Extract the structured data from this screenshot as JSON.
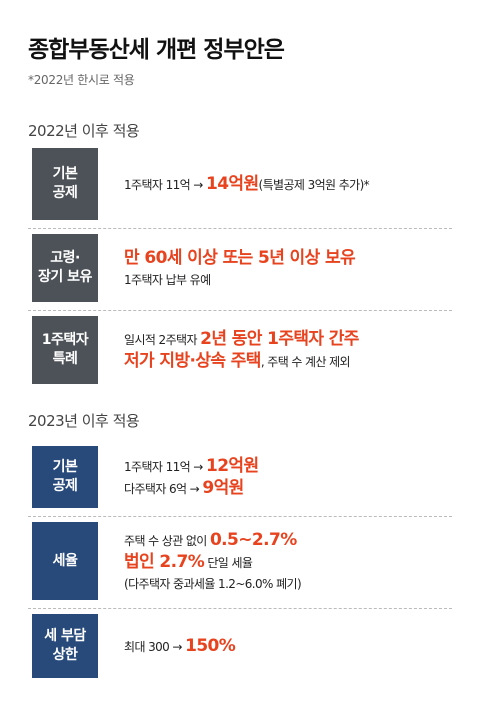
{
  "title": "종합부동산세 개편 정부안은",
  "subtitle": "*2022년 한시로 적용",
  "sections": [
    {
      "heading": "2022년 이후 적용",
      "rows": [
        {
          "label_line1": "기본",
          "label_line2": "공제",
          "line1_pre": "1주택자 11억 → ",
          "line1_hl": "14억원",
          "line1_post": "(특별공제 3억원 추가)*"
        },
        {
          "label_line1": "고령·",
          "label_line2": "장기 보유",
          "line1_hl": "만 60세 이상 또는 5년 이상 보유",
          "line2": "1주택자 납부 유예"
        },
        {
          "label_line1": "1주택자",
          "label_line2": "특례",
          "line1_pre": "일시적 2주택자 ",
          "line1_hl": "2년 동안 1주택자 간주",
          "line2_hl": "저가 지방·상속 주택",
          "line2_post": ", 주택 수 계산 제외"
        }
      ]
    },
    {
      "heading": "2023년 이후 적용",
      "rows": [
        {
          "label_line1": "기본",
          "label_line2": "공제",
          "line1_pre": "1주택자 11억 → ",
          "line1_hl": "12억원",
          "line2_pre": "다주택자 6억 → ",
          "line2_hl": "9억원"
        },
        {
          "label_line1": "세율",
          "line1_pre": "주택 수 상관 없이 ",
          "line1_hl": "0.5~2.7%",
          "line2_hl": "법인 2.7%",
          "line2_post": " 단일 세율",
          "line3": "(다주택자 중과세율 1.2~6.0% 폐기)"
        },
        {
          "label_line1": "세 부담",
          "label_line2": "상한",
          "line1_pre": "최대 300 → ",
          "line1_hl": "150%"
        }
      ]
    }
  ]
}
